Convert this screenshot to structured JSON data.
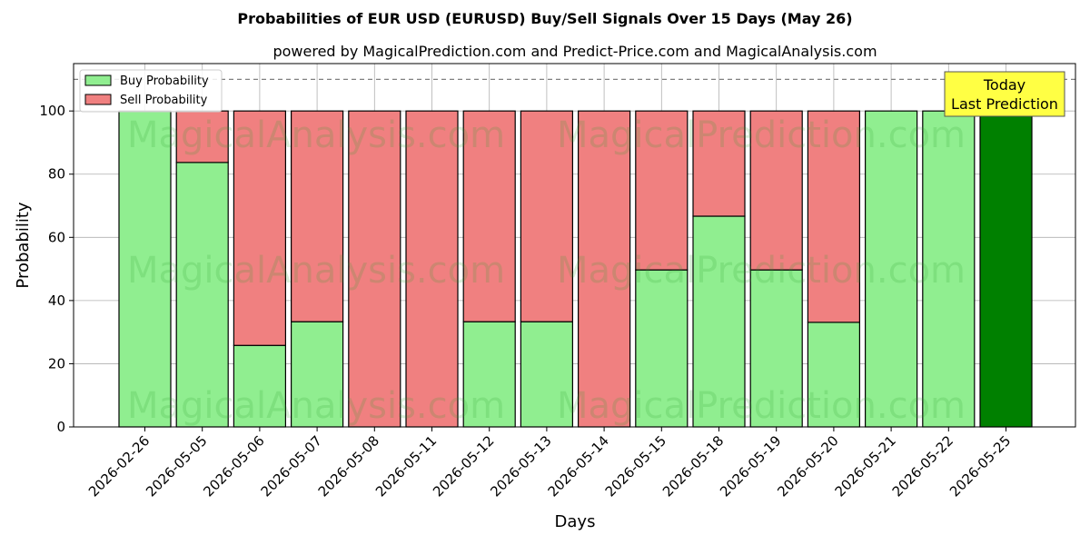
{
  "chart_data": {
    "type": "bar",
    "stacked": true,
    "title": "Probabilities of EUR USD (EURUSD) Buy/Sell Signals Over 15 Days (May 26)",
    "subtitle": "powered by MagicalPrediction.com and Predict-Price.com and MagicalAnalysis.com",
    "xlabel": "Days",
    "ylabel": "Probability",
    "ylim": [
      0,
      115
    ],
    "yticks": [
      0,
      20,
      40,
      60,
      80,
      100
    ],
    "reference_line": 110,
    "grid": true,
    "legend_position": "top-left",
    "categories": [
      "2026-02-26",
      "2026-05-05",
      "2026-05-06",
      "2026-05-07",
      "2026-05-08",
      "2026-05-11",
      "2026-05-12",
      "2026-05-13",
      "2026-05-14",
      "2026-05-15",
      "2026-05-18",
      "2026-05-19",
      "2026-05-20",
      "2026-05-21",
      "2026-05-22",
      "2026-05-25"
    ],
    "series": [
      {
        "name": "Buy Probability",
        "color": "#90ee90",
        "values": [
          100,
          83.7,
          25.8,
          33.3,
          0,
          0,
          33.3,
          33.3,
          0,
          49.7,
          66.7,
          49.7,
          33.1,
          100,
          100,
          100
        ]
      },
      {
        "name": "Sell Probability",
        "color": "#f08080",
        "values": [
          0,
          16.3,
          74.2,
          66.7,
          100,
          100,
          66.7,
          66.7,
          100,
          50.3,
          33.3,
          50.3,
          66.9,
          0,
          0,
          0
        ]
      }
    ],
    "highlight": {
      "index": 15,
      "color": "#008000"
    },
    "annotation": {
      "lines": [
        "Today",
        "Last Prediction"
      ],
      "background": "#ffff44"
    },
    "watermarks": [
      "MagicalAnalysis.com",
      "MagicalPrediction.com"
    ]
  }
}
